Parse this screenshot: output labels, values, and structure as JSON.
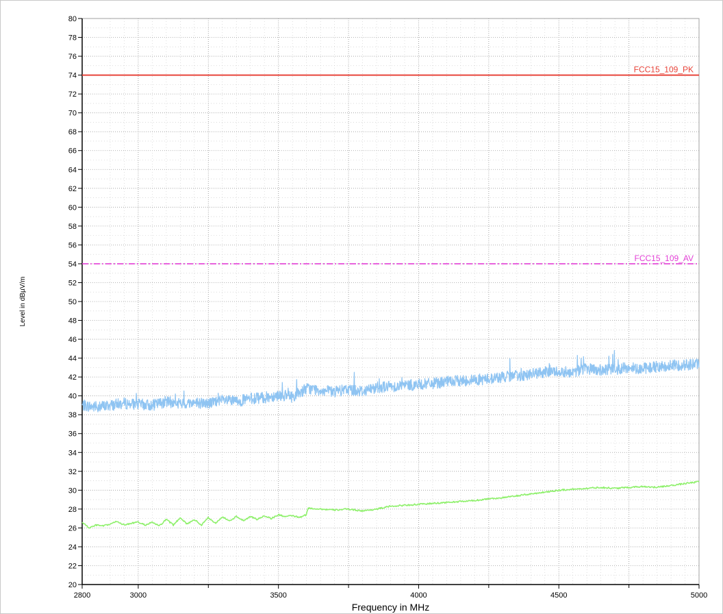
{
  "chart_data": {
    "type": "line",
    "title": "",
    "xlabel": "Frequency in MHz",
    "ylabel": "Level in dBµV/m",
    "xlim": [
      2800,
      5000
    ],
    "ylim": [
      20,
      80
    ],
    "x_ticks": [
      2800,
      3000,
      3500,
      4000,
      4500,
      5000
    ],
    "x_minor_ticks": [
      3250,
      3750,
      4250,
      4750
    ],
    "y_ticks": [
      20,
      22,
      24,
      26,
      28,
      30,
      32,
      34,
      36,
      38,
      40,
      42,
      44,
      46,
      48,
      50,
      52,
      54,
      56,
      58,
      60,
      62,
      64,
      66,
      68,
      70,
      72,
      74,
      76,
      78,
      80
    ],
    "grid": true,
    "limit_lines": [
      {
        "name": "FCC15_109_PK",
        "label": "FCC15_109_PK",
        "value": 74,
        "color": "#e8443a",
        "style": "solid"
      },
      {
        "name": "FCC15_109_AV",
        "label": "FCC15_109_AV",
        "value": 54,
        "color": "#e33fd6",
        "style": "dashdot"
      }
    ],
    "series": [
      {
        "color": "#8fc4f2",
        "style": "noisy",
        "noise": 0.6,
        "x": [
          2800,
          2850,
          2900,
          2950,
          3000,
          3050,
          3100,
          3150,
          3200,
          3250,
          3300,
          3350,
          3400,
          3450,
          3500,
          3550,
          3600,
          3650,
          3700,
          3750,
          3800,
          3850,
          3900,
          3950,
          4000,
          4050,
          4100,
          4150,
          4200,
          4250,
          4300,
          4350,
          4400,
          4450,
          4500,
          4550,
          4600,
          4650,
          4700,
          4750,
          4800,
          4850,
          4900,
          4950,
          5000
        ],
        "values": [
          39.0,
          38.8,
          39.0,
          39.2,
          39.1,
          39.0,
          39.4,
          39.1,
          39.3,
          39.2,
          39.5,
          39.4,
          39.7,
          39.8,
          40.1,
          39.9,
          40.8,
          40.6,
          40.4,
          40.7,
          40.5,
          40.9,
          41.0,
          41.1,
          41.2,
          41.3,
          41.5,
          41.6,
          41.7,
          41.8,
          42.0,
          42.1,
          42.3,
          42.5,
          42.6,
          42.5,
          42.9,
          42.7,
          42.8,
          43.0,
          42.9,
          43.1,
          43.2,
          43.3,
          43.4
        ]
      },
      {
        "color": "#8ef06b",
        "style": "smooth",
        "noise": 0.08,
        "x": [
          2800,
          2825,
          2850,
          2875,
          2900,
          2925,
          2950,
          2975,
          3000,
          3025,
          3050,
          3075,
          3100,
          3125,
          3150,
          3175,
          3200,
          3225,
          3250,
          3275,
          3300,
          3325,
          3350,
          3375,
          3400,
          3425,
          3450,
          3475,
          3500,
          3525,
          3550,
          3575,
          3600,
          3605,
          3650,
          3700,
          3750,
          3800,
          3850,
          3900,
          3950,
          4000,
          4050,
          4100,
          4150,
          4200,
          4250,
          4300,
          4350,
          4400,
          4450,
          4500,
          4550,
          4600,
          4650,
          4700,
          4750,
          4800,
          4850,
          4900,
          4950,
          5000
        ],
        "values": [
          26.6,
          26.0,
          26.3,
          26.2,
          26.4,
          26.7,
          26.3,
          26.5,
          26.6,
          26.3,
          26.6,
          26.2,
          26.9,
          26.3,
          27.1,
          26.4,
          26.9,
          26.3,
          27.1,
          26.5,
          27.2,
          26.7,
          27.2,
          26.8,
          27.2,
          26.9,
          27.3,
          27.0,
          27.4,
          27.2,
          27.3,
          27.1,
          27.4,
          28.1,
          28.0,
          27.9,
          28.0,
          27.8,
          28.0,
          28.3,
          28.4,
          28.5,
          28.6,
          28.7,
          28.8,
          28.9,
          29.1,
          29.2,
          29.4,
          29.6,
          29.8,
          30.0,
          30.1,
          30.2,
          30.3,
          30.2,
          30.3,
          30.4,
          30.3,
          30.5,
          30.7,
          30.9
        ]
      }
    ]
  }
}
